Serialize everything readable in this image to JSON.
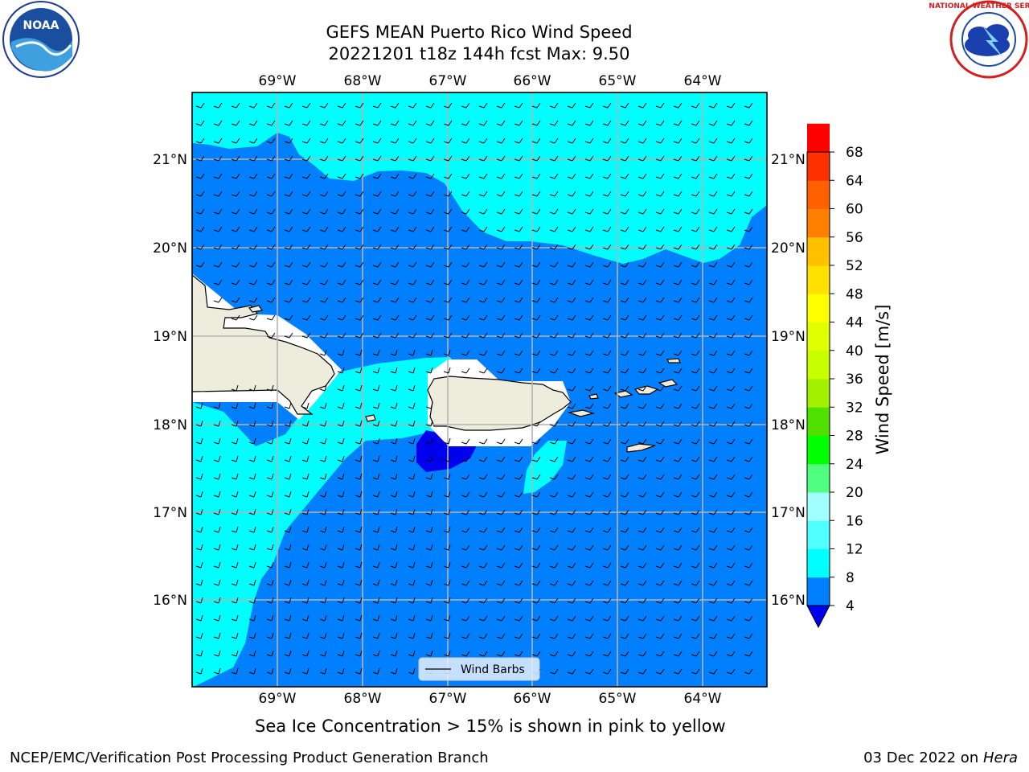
{
  "title": {
    "line1": "GEFS MEAN Puerto Rico Wind Speed",
    "line2": "20221201 t18z 144h fcst   Max: 9.50"
  },
  "map": {
    "lon_labels": [
      "69°W",
      "68°W",
      "67°W",
      "66°W",
      "65°W",
      "64°W"
    ],
    "lat_labels": [
      "21°N",
      "20°N",
      "19°N",
      "18°N",
      "17°N",
      "16°N"
    ],
    "legend_label": "Wind Barbs",
    "colors": {
      "land": "#eeecdc",
      "speed_4_8": "#0080ff",
      "speed_8_12": "#00ffff",
      "speed_below_4": "#0000ee",
      "grid": "#b4b4b4"
    }
  },
  "colorbar": {
    "label": "Wind Speed [m/s]",
    "ticks": [
      "4",
      "8",
      "12",
      "16",
      "20",
      "24",
      "28",
      "32",
      "36",
      "40",
      "44",
      "48",
      "52",
      "56",
      "60",
      "64",
      "68"
    ],
    "colors": [
      "#0080ff",
      "#00ffff",
      "#50ffff",
      "#a0ffff",
      "#50ff80",
      "#00ff00",
      "#50e000",
      "#a0f000",
      "#c8ff00",
      "#e0ff00",
      "#ffff00",
      "#ffe000",
      "#ffc000",
      "#ff8000",
      "#ff6000",
      "#ff3000",
      "#ff0000"
    ],
    "underflow_color": "#0000ee"
  },
  "logos": {
    "noaa_text": "NOAA",
    "nws_text": "NATIONAL WEATHER SERVICE"
  },
  "note": "Sea Ice Concentration > 15% is shown in pink to yellow",
  "footer": {
    "left": "NCEP/EMC/Verification Post Processing Product Generation Branch",
    "right_date": "03 Dec 2022 on ",
    "right_host": "Hera"
  }
}
